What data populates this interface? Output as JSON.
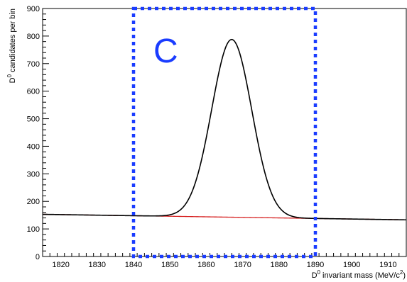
{
  "chart_data": {
    "type": "line",
    "xlabel": {
      "base": "D",
      "sup": "0",
      "text": " invariant mass (MeV/c",
      "sup2": "2",
      "end": ")"
    },
    "ylabel": {
      "base": "D",
      "sup": "0",
      "text": " candidates per bin"
    },
    "xlim": [
      1815,
      1915
    ],
    "ylim": [
      0,
      900
    ],
    "x_ticks": [
      1820,
      1830,
      1840,
      1850,
      1860,
      1870,
      1880,
      1890,
      1900,
      1910
    ],
    "y_ticks": [
      0,
      100,
      200,
      300,
      400,
      500,
      600,
      700,
      800,
      900
    ],
    "background_fn": {
      "color": "#d62020",
      "slope": -0.2,
      "intercept_at_1815": 153
    },
    "total_fn": {
      "color": "#000000",
      "peak_mean": 1867,
      "peak_sigma": 5.5,
      "peak_amplitude": 645
    },
    "region": {
      "label": "C",
      "x_range": [
        1840,
        1890
      ],
      "color": "#1a3cff",
      "style": "dotted"
    },
    "grid": false,
    "legend": "none"
  }
}
